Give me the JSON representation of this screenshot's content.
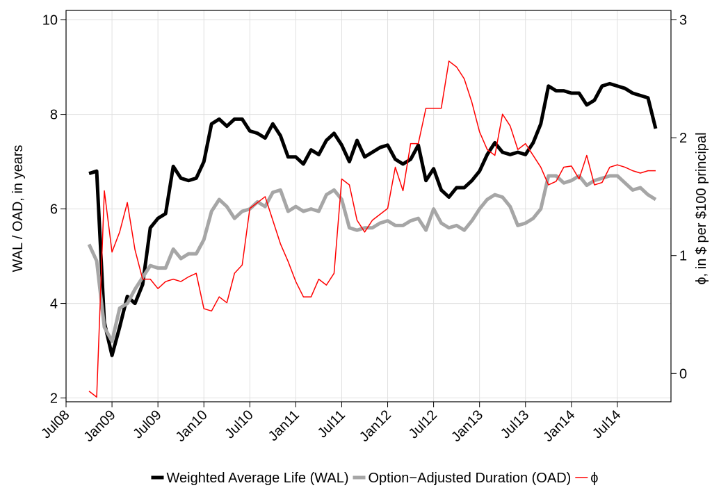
{
  "chart_data": {
    "type": "line",
    "y_label": "WAL / OAD, in years",
    "y2_label": "ϕ, in $ per $100 principal",
    "x": [
      "2008-10",
      "2008-11",
      "2008-12",
      "2009-01",
      "2009-02",
      "2009-03",
      "2009-04",
      "2009-05",
      "2009-06",
      "2009-07",
      "2009-08",
      "2009-09",
      "2009-10",
      "2009-11",
      "2009-12",
      "2010-01",
      "2010-02",
      "2010-03",
      "2010-04",
      "2010-05",
      "2010-06",
      "2010-07",
      "2010-08",
      "2010-09",
      "2010-10",
      "2010-11",
      "2010-12",
      "2011-01",
      "2011-02",
      "2011-03",
      "2011-04",
      "2011-05",
      "2011-06",
      "2011-07",
      "2011-08",
      "2011-09",
      "2011-10",
      "2011-11",
      "2011-12",
      "2012-01",
      "2012-02",
      "2012-03",
      "2012-04",
      "2012-05",
      "2012-06",
      "2012-07",
      "2012-08",
      "2012-09",
      "2012-10",
      "2012-11",
      "2012-12",
      "2013-01",
      "2013-02",
      "2013-03",
      "2013-04",
      "2013-05",
      "2013-06",
      "2013-07",
      "2013-08",
      "2013-09",
      "2013-10",
      "2013-11",
      "2013-12",
      "2014-01",
      "2014-02",
      "2014-03",
      "2014-04",
      "2014-05",
      "2014-06",
      "2014-07",
      "2014-08",
      "2014-09",
      "2014-10",
      "2014-11",
      "2014-12"
    ],
    "series": [
      {
        "name": "Weighted Average Life (WAL)",
        "color": "#000000",
        "axis": "y",
        "values": [
          6.75,
          6.8,
          3.6,
          2.9,
          3.5,
          4.15,
          4.0,
          4.4,
          5.6,
          5.8,
          5.9,
          6.9,
          6.65,
          6.6,
          6.65,
          7.0,
          7.8,
          7.9,
          7.75,
          7.9,
          7.9,
          7.65,
          7.6,
          7.5,
          7.8,
          7.55,
          7.1,
          7.1,
          6.95,
          7.25,
          7.15,
          7.45,
          7.6,
          7.35,
          7.0,
          7.45,
          7.1,
          7.2,
          7.3,
          7.35,
          7.05,
          6.95,
          7.05,
          7.35,
          6.6,
          6.85,
          6.4,
          6.25,
          6.45,
          6.45,
          6.6,
          6.8,
          7.15,
          7.4,
          7.2,
          7.15,
          7.2,
          7.15,
          7.4,
          7.8,
          8.6,
          8.5,
          8.5,
          8.45,
          8.45,
          8.2,
          8.3,
          8.6,
          8.65,
          8.6,
          8.55,
          8.45,
          8.4,
          8.35,
          7.7
        ]
      },
      {
        "name": "Option−Adjusted Duration (OAD)",
        "color": "#a6a6a6",
        "axis": "y",
        "values": [
          5.25,
          4.9,
          3.5,
          3.2,
          3.9,
          4.0,
          4.3,
          4.55,
          4.8,
          4.75,
          4.75,
          5.15,
          4.95,
          5.05,
          5.05,
          5.35,
          5.95,
          6.2,
          6.05,
          5.8,
          5.95,
          6.0,
          6.15,
          6.05,
          6.35,
          6.4,
          5.95,
          6.05,
          5.95,
          6.0,
          5.95,
          6.3,
          6.4,
          6.2,
          5.6,
          5.55,
          5.6,
          5.6,
          5.7,
          5.75,
          5.65,
          5.65,
          5.75,
          5.8,
          5.55,
          6.0,
          5.7,
          5.6,
          5.65,
          5.55,
          5.75,
          6.0,
          6.2,
          6.3,
          6.25,
          6.05,
          5.65,
          5.7,
          5.8,
          6.0,
          6.7,
          6.7,
          6.55,
          6.6,
          6.7,
          6.5,
          6.6,
          6.65,
          6.7,
          6.7,
          6.55,
          6.4,
          6.45,
          6.3,
          6.2
        ]
      },
      {
        "name": "ϕ",
        "color": "#ff0000",
        "axis": "y2",
        "values": [
          -0.15,
          -0.2,
          1.55,
          1.03,
          1.2,
          1.45,
          1.05,
          0.8,
          0.8,
          0.72,
          0.78,
          0.8,
          0.78,
          0.82,
          0.85,
          0.55,
          0.53,
          0.65,
          0.6,
          0.85,
          0.92,
          1.4,
          1.45,
          1.5,
          1.3,
          1.1,
          0.95,
          0.78,
          0.65,
          0.65,
          0.8,
          0.75,
          0.85,
          1.65,
          1.6,
          1.3,
          1.2,
          1.3,
          1.35,
          1.4,
          1.75,
          1.55,
          1.95,
          1.95,
          2.25,
          2.25,
          2.25,
          2.65,
          2.6,
          2.5,
          2.3,
          2.05,
          1.9,
          1.85,
          2.2,
          2.1,
          1.9,
          1.95,
          1.85,
          1.75,
          1.6,
          1.63,
          1.75,
          1.76,
          1.65,
          1.85,
          1.6,
          1.62,
          1.75,
          1.77,
          1.75,
          1.72,
          1.7,
          1.72,
          1.72
        ]
      }
    ],
    "xlim": [
      "2008-07",
      "2015-02"
    ],
    "xticks": [
      {
        "value": "2008-07",
        "label": "Jul08"
      },
      {
        "value": "2009-01",
        "label": "Jan09"
      },
      {
        "value": "2009-07",
        "label": "Jul09"
      },
      {
        "value": "2010-01",
        "label": "Jan10"
      },
      {
        "value": "2010-07",
        "label": "Jul10"
      },
      {
        "value": "2011-01",
        "label": "Jan11"
      },
      {
        "value": "2011-07",
        "label": "Jul11"
      },
      {
        "value": "2012-01",
        "label": "Jan12"
      },
      {
        "value": "2012-07",
        "label": "Jul12"
      },
      {
        "value": "2013-01",
        "label": "Jan13"
      },
      {
        "value": "2013-07",
        "label": "Jul13"
      },
      {
        "value": "2014-01",
        "label": "Jan14"
      },
      {
        "value": "2014-07",
        "label": "Jul14"
      }
    ],
    "ylim": [
      1.92,
      10.2
    ],
    "yticks": [
      2,
      4,
      6,
      8,
      10
    ],
    "y2lim": [
      -0.24,
      3.08
    ],
    "y2ticks": [
      0,
      1,
      2,
      3
    ],
    "grid": true,
    "legend": "bottom"
  }
}
